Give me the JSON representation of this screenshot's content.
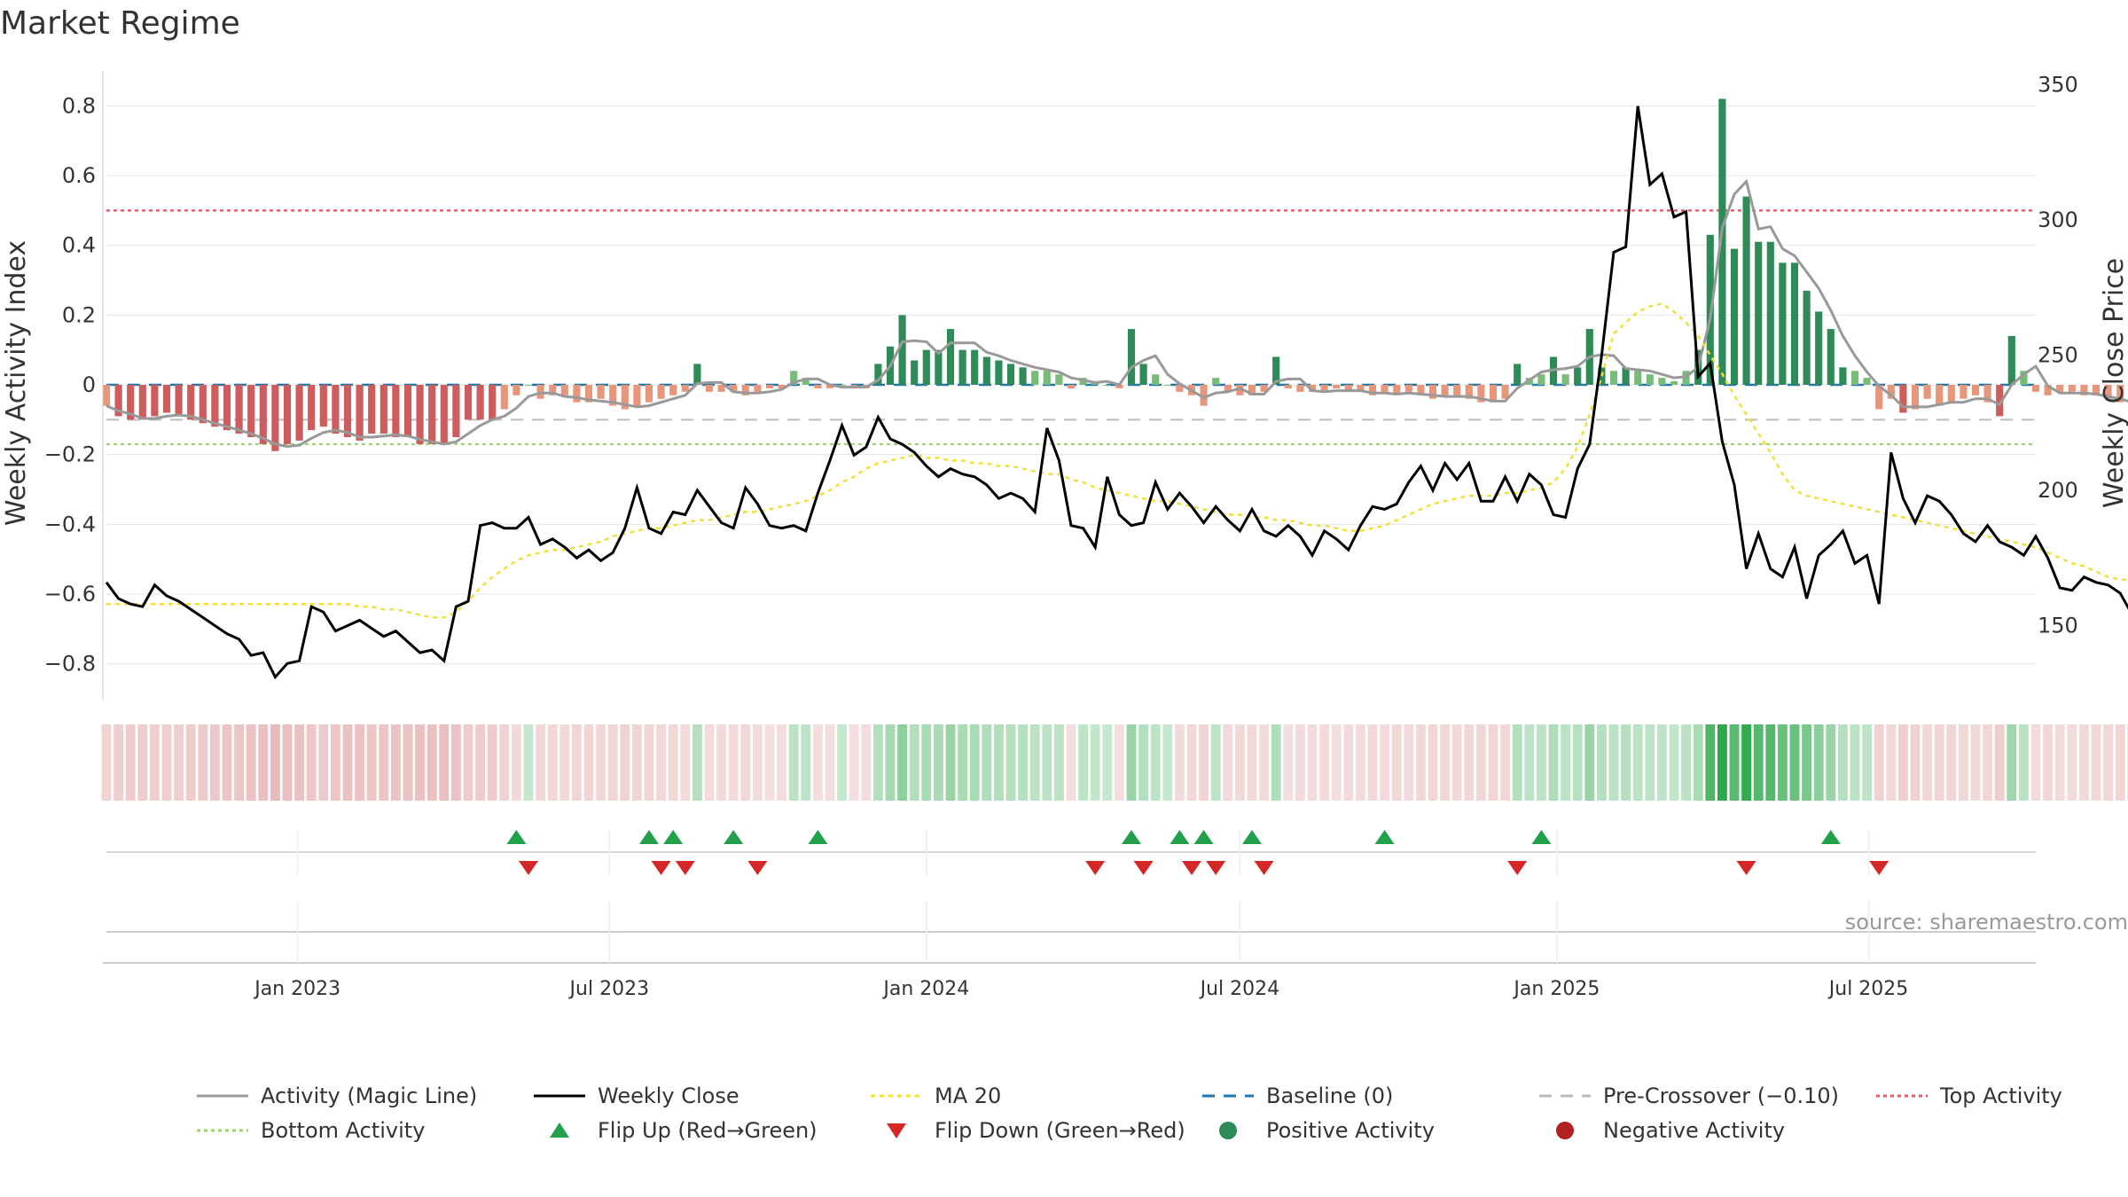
{
  "title": "Market Regime",
  "source": "source: sharemaestro.com",
  "colors": {
    "strong_green": "#2e8b57",
    "light_green": "#77bd77",
    "strong_red": "#cd5c5c",
    "light_red": "#e8967a",
    "magic_line": "#999999",
    "close": "#000000",
    "ma20": "#f2e03a",
    "baseline": "#1f77b4",
    "pre_crossover": "#bbbbbb",
    "top_activity": "#e05c6e",
    "bottom_activity": "#99d36b",
    "flip_up": "#22a04b",
    "flip_down": "#d62728"
  },
  "legend": [
    {
      "label": "Activity (Magic Line)",
      "kind": "line",
      "color": "#999999",
      "dash": ""
    },
    {
      "label": "Weekly Close",
      "kind": "line",
      "color": "#000000",
      "dash": ""
    },
    {
      "label": "MA 20",
      "kind": "line",
      "color": "#f2e03a",
      "dash": "5,5"
    },
    {
      "label": "Baseline (0)",
      "kind": "line",
      "color": "#1f77b4",
      "dash": "14,10"
    },
    {
      "label": "Pre-Crossover (−0.10)",
      "kind": "line",
      "color": "#bbbbbb",
      "dash": "14,10"
    },
    {
      "label": "Top Activity",
      "kind": "line",
      "color": "#e05c6e",
      "dash": "4,4"
    },
    {
      "label": "Bottom Activity",
      "kind": "line",
      "color": "#99d36b",
      "dash": "4,4"
    },
    {
      "label": "Flip Up (Red→Green)",
      "kind": "tri-up",
      "color": "#22a04b",
      "dash": ""
    },
    {
      "label": "Flip Down (Green→Red)",
      "kind": "tri-down",
      "color": "#d62728",
      "dash": ""
    },
    {
      "label": "Positive Activity",
      "kind": "dot",
      "color": "#2e8b57",
      "dash": ""
    },
    {
      "label": "Negative Activity",
      "kind": "dot",
      "color": "#b22222",
      "dash": ""
    }
  ],
  "chart_data": {
    "type": "bar+line",
    "title": "Market Regime",
    "y_left": {
      "label": "Weekly Activity Index",
      "range": [
        -0.9,
        0.9
      ],
      "ticks": [
        0.8,
        0.6,
        0.4,
        0.2,
        0,
        -0.2,
        -0.4,
        -0.6,
        -0.8
      ],
      "tick_labels": [
        "0.8",
        "0.6",
        "0.4",
        "0.2",
        "0",
        "−0.2",
        "−0.4",
        "−0.6",
        "−0.8"
      ]
    },
    "y_right": {
      "label": "Weekly Close Price",
      "range": [
        123,
        355
      ],
      "ticks": [
        350,
        300,
        250,
        200,
        150
      ],
      "tick_labels": [
        "350",
        "300",
        "250",
        "200",
        "150"
      ]
    },
    "x_axis": {
      "start": "2022-09-12",
      "end": "2025-10-06",
      "tick_dates": [
        "2023-01-01",
        "2023-07-01",
        "2024-01-01",
        "2024-07-01",
        "2025-01-01",
        "2025-07-01"
      ],
      "tick_labels": [
        "Jan 2023",
        "Jul 2023",
        "Jan 2024",
        "Jul 2024",
        "Jan 2025",
        "Jul 2025"
      ]
    },
    "reference_lines": {
      "baseline": 0,
      "pre_crossover": -0.1,
      "top_activity": 0.5,
      "bottom_activity": -0.17
    },
    "grid": true,
    "legend_position": "bottom",
    "series": [
      {
        "name": "Activity (Magic Line)",
        "kind": "bars+line",
        "dates_from": "2022-09-12",
        "values": [
          -0.06,
          -0.09,
          -0.1,
          -0.1,
          -0.09,
          -0.08,
          -0.09,
          -0.1,
          -0.11,
          -0.12,
          -0.13,
          -0.14,
          -0.15,
          -0.17,
          -0.19,
          -0.17,
          -0.16,
          -0.13,
          -0.12,
          -0.14,
          -0.15,
          -0.16,
          -0.14,
          -0.14,
          -0.15,
          -0.15,
          -0.17,
          -0.17,
          -0.17,
          -0.15,
          -0.1,
          -0.1,
          -0.1,
          -0.07,
          -0.03,
          0.0,
          -0.04,
          -0.03,
          -0.03,
          -0.05,
          -0.05,
          -0.04,
          -0.06,
          -0.07,
          -0.06,
          -0.05,
          -0.04,
          -0.03,
          -0.02,
          0.06,
          -0.02,
          -0.02,
          -0.02,
          -0.03,
          -0.02,
          -0.01,
          -0.01,
          0.04,
          0.02,
          -0.01,
          -0.01,
          0.0,
          -0.01,
          -0.01,
          0.06,
          0.11,
          0.2,
          0.07,
          0.1,
          0.1,
          0.16,
          0.1,
          0.1,
          0.08,
          0.07,
          0.06,
          0.05,
          0.04,
          0.04,
          0.03,
          -0.01,
          0.02,
          0.01,
          0.0,
          -0.01,
          0.16,
          0.06,
          0.03,
          0.0,
          -0.02,
          -0.03,
          -0.06,
          0.02,
          -0.02,
          -0.03,
          -0.03,
          -0.02,
          0.08,
          -0.01,
          -0.02,
          -0.02,
          -0.02,
          -0.01,
          -0.02,
          -0.02,
          -0.03,
          -0.02,
          -0.03,
          -0.02,
          -0.03,
          -0.04,
          -0.03,
          -0.03,
          -0.04,
          -0.05,
          -0.05,
          -0.04,
          0.06,
          0.02,
          0.03,
          0.08,
          0.03,
          0.05,
          0.16,
          0.05,
          0.04,
          0.05,
          0.04,
          0.03,
          0.02,
          0.01,
          0.04,
          0.1,
          0.43,
          0.82,
          0.39,
          0.54,
          0.41,
          0.41,
          0.35,
          0.35,
          0.27,
          0.21,
          0.16,
          0.05,
          0.04,
          0.02,
          -0.07,
          -0.04,
          -0.08,
          -0.07,
          -0.04,
          -0.06,
          -0.05,
          -0.04,
          -0.03,
          -0.05,
          -0.09,
          0.14,
          0.04,
          -0.02,
          -0.03,
          -0.02,
          -0.02,
          -0.03,
          -0.03,
          -0.04,
          -0.05,
          -0.06,
          -0.08,
          -0.09,
          -0.1,
          -0.1,
          -0.08,
          -0.1,
          -0.1,
          -0.13
        ]
      },
      {
        "name": "Weekly Close",
        "kind": "line",
        "dates_from": "2022-09-12",
        "values": [
          166,
          160,
          158,
          157,
          165,
          161,
          159,
          156,
          153,
          150,
          147,
          145,
          139,
          140,
          131,
          136,
          137,
          157,
          155,
          148,
          150,
          152,
          149,
          146,
          148,
          144,
          140,
          141,
          137,
          157,
          159,
          187,
          188,
          186,
          186,
          190,
          180,
          182,
          179,
          175,
          178,
          174,
          177,
          186,
          201,
          186,
          184,
          192,
          191,
          200,
          194,
          188,
          186,
          201,
          195,
          187,
          186,
          187,
          185,
          199,
          211,
          224,
          213,
          216,
          227,
          219,
          217,
          214,
          209,
          205,
          208,
          206,
          205,
          202,
          197,
          199,
          197,
          192,
          223,
          211,
          187,
          186,
          179,
          205,
          191,
          187,
          188,
          203,
          193,
          199,
          194,
          188,
          194,
          189,
          185,
          193,
          185,
          183,
          187,
          183,
          176,
          185,
          182,
          178,
          187,
          194,
          193,
          195,
          203,
          209,
          200,
          210,
          204,
          210,
          196,
          196,
          205,
          196,
          206,
          202,
          191,
          190,
          208,
          217,
          250,
          288,
          290,
          342,
          313,
          317,
          301,
          303,
          242,
          247,
          218,
          202,
          171,
          184,
          171,
          168,
          179,
          160,
          176,
          180,
          185,
          173,
          176,
          158,
          214,
          197,
          188,
          198,
          196,
          191,
          184,
          181,
          187,
          181,
          179,
          176,
          183,
          175,
          164,
          163,
          168,
          166,
          165,
          162,
          154
        ]
      },
      {
        "name": "MA 20",
        "kind": "line",
        "dates_from": "2022-09-12",
        "values": [
          158,
          158,
          158,
          158,
          158,
          158,
          158,
          158,
          158,
          158,
          158,
          158,
          158,
          158,
          158,
          158,
          158,
          158,
          158,
          158,
          158,
          157,
          157,
          156,
          156,
          155,
          154,
          153,
          153,
          155,
          159,
          164,
          168,
          171,
          174,
          176,
          177,
          178,
          178,
          179,
          180,
          181,
          183,
          184,
          185,
          186,
          186,
          187,
          188,
          189,
          189,
          190,
          191,
          192,
          192,
          193,
          194,
          195,
          196,
          198,
          200,
          203,
          205,
          208,
          210,
          211,
          212,
          213,
          212,
          212,
          211,
          211,
          210,
          210,
          209,
          209,
          208,
          207,
          206,
          206,
          204,
          203,
          201,
          200,
          199,
          198,
          197,
          196,
          196,
          195,
          194,
          193,
          192,
          191,
          191,
          190,
          190,
          189,
          189,
          188,
          187,
          187,
          186,
          185,
          185,
          186,
          187,
          189,
          191,
          193,
          195,
          196,
          197,
          198,
          198,
          198,
          199,
          199,
          200,
          201,
          203,
          208,
          216,
          228,
          242,
          258,
          262,
          266,
          268,
          269,
          266,
          262,
          257,
          250,
          243,
          235,
          228,
          221,
          214,
          206,
          200,
          198,
          197,
          196,
          195,
          194,
          193,
          192,
          191,
          190,
          189,
          188,
          187,
          186,
          185,
          184,
          183,
          182,
          181,
          180,
          179,
          177,
          175,
          173,
          172,
          170,
          168,
          167,
          167
        ]
      },
      {
        "name": "Regime strip",
        "kind": "heat",
        "dates_from": "2022-09-12",
        "values": [
          -0.06,
          -0.09,
          -0.1,
          -0.1,
          -0.09,
          -0.08,
          -0.09,
          -0.1,
          -0.11,
          -0.12,
          -0.13,
          -0.14,
          -0.15,
          -0.17,
          -0.19,
          -0.17,
          -0.16,
          -0.13,
          -0.12,
          -0.14,
          -0.15,
          -0.16,
          -0.14,
          -0.14,
          -0.15,
          -0.15,
          -0.17,
          -0.17,
          -0.17,
          -0.15,
          -0.1,
          -0.1,
          -0.1,
          -0.07,
          -0.03,
          0.0,
          -0.04,
          -0.03,
          -0.03,
          -0.05,
          -0.05,
          -0.04,
          -0.06,
          -0.07,
          -0.06,
          -0.05,
          -0.04,
          -0.03,
          -0.02,
          0.06,
          -0.02,
          -0.02,
          -0.02,
          -0.03,
          -0.02,
          -0.01,
          -0.01,
          0.04,
          0.02,
          -0.01,
          -0.01,
          0.0,
          -0.01,
          -0.01,
          0.06,
          0.11,
          0.2,
          0.07,
          0.1,
          0.1,
          0.16,
          0.1,
          0.1,
          0.08,
          0.07,
          0.06,
          0.05,
          0.04,
          0.04,
          0.03,
          -0.01,
          0.02,
          0.01,
          0.0,
          -0.01,
          0.16,
          0.06,
          0.03,
          0.0,
          -0.02,
          -0.03,
          -0.06,
          0.02,
          -0.02,
          -0.03,
          -0.03,
          -0.02,
          0.08,
          -0.01,
          -0.02,
          -0.02,
          -0.02,
          -0.01,
          -0.02,
          -0.02,
          -0.03,
          -0.02,
          -0.03,
          -0.02,
          -0.03,
          -0.04,
          -0.03,
          -0.03,
          -0.04,
          -0.05,
          -0.05,
          -0.04,
          0.06,
          0.02,
          0.03,
          0.08,
          0.03,
          0.05,
          0.16,
          0.05,
          0.04,
          0.05,
          0.04,
          0.03,
          0.02,
          0.01,
          0.04,
          0.1,
          0.43,
          0.82,
          0.39,
          0.54,
          0.41,
          0.41,
          0.35,
          0.35,
          0.27,
          0.21,
          0.16,
          0.05,
          0.04,
          0.02,
          -0.07,
          -0.04,
          -0.08,
          -0.07,
          -0.04,
          -0.06,
          -0.05,
          -0.04,
          -0.03,
          -0.05,
          -0.09,
          0.14,
          0.04,
          -0.02,
          -0.03,
          -0.02,
          -0.02,
          -0.03,
          -0.03,
          -0.04,
          -0.05,
          -0.06,
          -0.08,
          -0.09,
          -0.1,
          -0.1,
          -0.08,
          -0.1,
          -0.1,
          -0.13
        ]
      }
    ],
    "flip_up_dates": [
      "2023-05-08",
      "2023-07-24",
      "2023-08-07",
      "2023-09-11",
      "2023-10-30",
      "2024-04-29",
      "2024-05-27",
      "2024-06-10",
      "2024-07-08",
      "2024-09-23",
      "2024-12-23",
      "2025-06-09"
    ],
    "flip_down_dates": [
      "2023-05-15",
      "2023-07-31",
      "2023-08-14",
      "2023-09-25",
      "2024-04-08",
      "2024-05-06",
      "2024-06-03",
      "2024-06-17",
      "2024-07-15",
      "2024-12-09",
      "2025-04-21",
      "2025-07-07"
    ]
  }
}
